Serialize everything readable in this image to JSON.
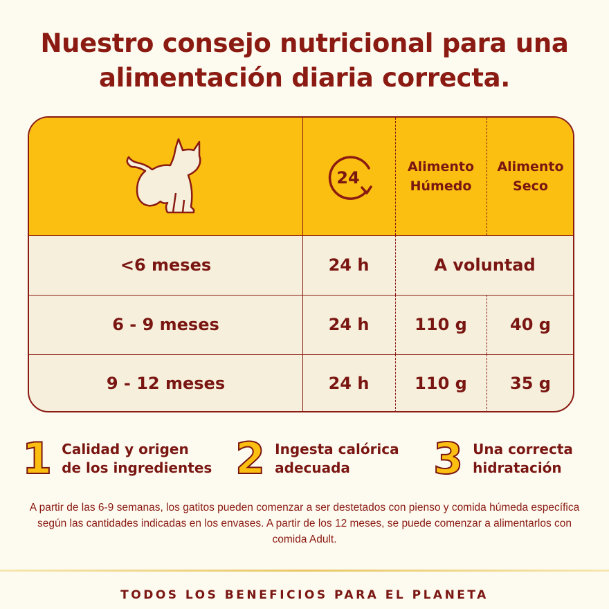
{
  "title": {
    "line1": "Nuestro consejo nutricional para una",
    "line2": "alimentación diaria correcta."
  },
  "table": {
    "header": {
      "cat_icon": "cat-silhouette-icon",
      "time_icon_text": "24",
      "wet_line1": "Alimento",
      "wet_line2": "Húmedo",
      "dry_line1": "Alimento",
      "dry_line2": "Seco"
    },
    "rows": [
      {
        "age": "<6 meses",
        "time": "24 h",
        "combined": "A voluntad"
      },
      {
        "age": "6 - 9 meses",
        "time": "24 h",
        "wet": "110 g",
        "dry": "40 g"
      },
      {
        "age": "9 - 12 meses",
        "time": "24 h",
        "wet": "110 g",
        "dry": "35 g"
      }
    ]
  },
  "benefits": [
    {
      "number": "1",
      "line1": "Calidad y origen",
      "line2": "de los ingredientes"
    },
    {
      "number": "2",
      "line1": "Ingesta calórica",
      "line2": "adecuada"
    },
    {
      "number": "3",
      "line1": "Una correcta",
      "line2": "hidratación"
    }
  ],
  "disclaimer": "A partir de las 6-9 semanas, los gatitos pueden comenzar a ser destetados con pienso y comida húmeda específica según las cantidades indicadas en los envases. A partir de los 12 meses, se puede comenzar a alimentarlos con comida Adult.",
  "footer": "TODOS LOS BENEFICIOS PARA EL PLANETA",
  "colors": {
    "primary": "#8a1a12",
    "accent": "#fbbf12",
    "background": "#fdfaef",
    "row_bg": "#f6efdc"
  }
}
